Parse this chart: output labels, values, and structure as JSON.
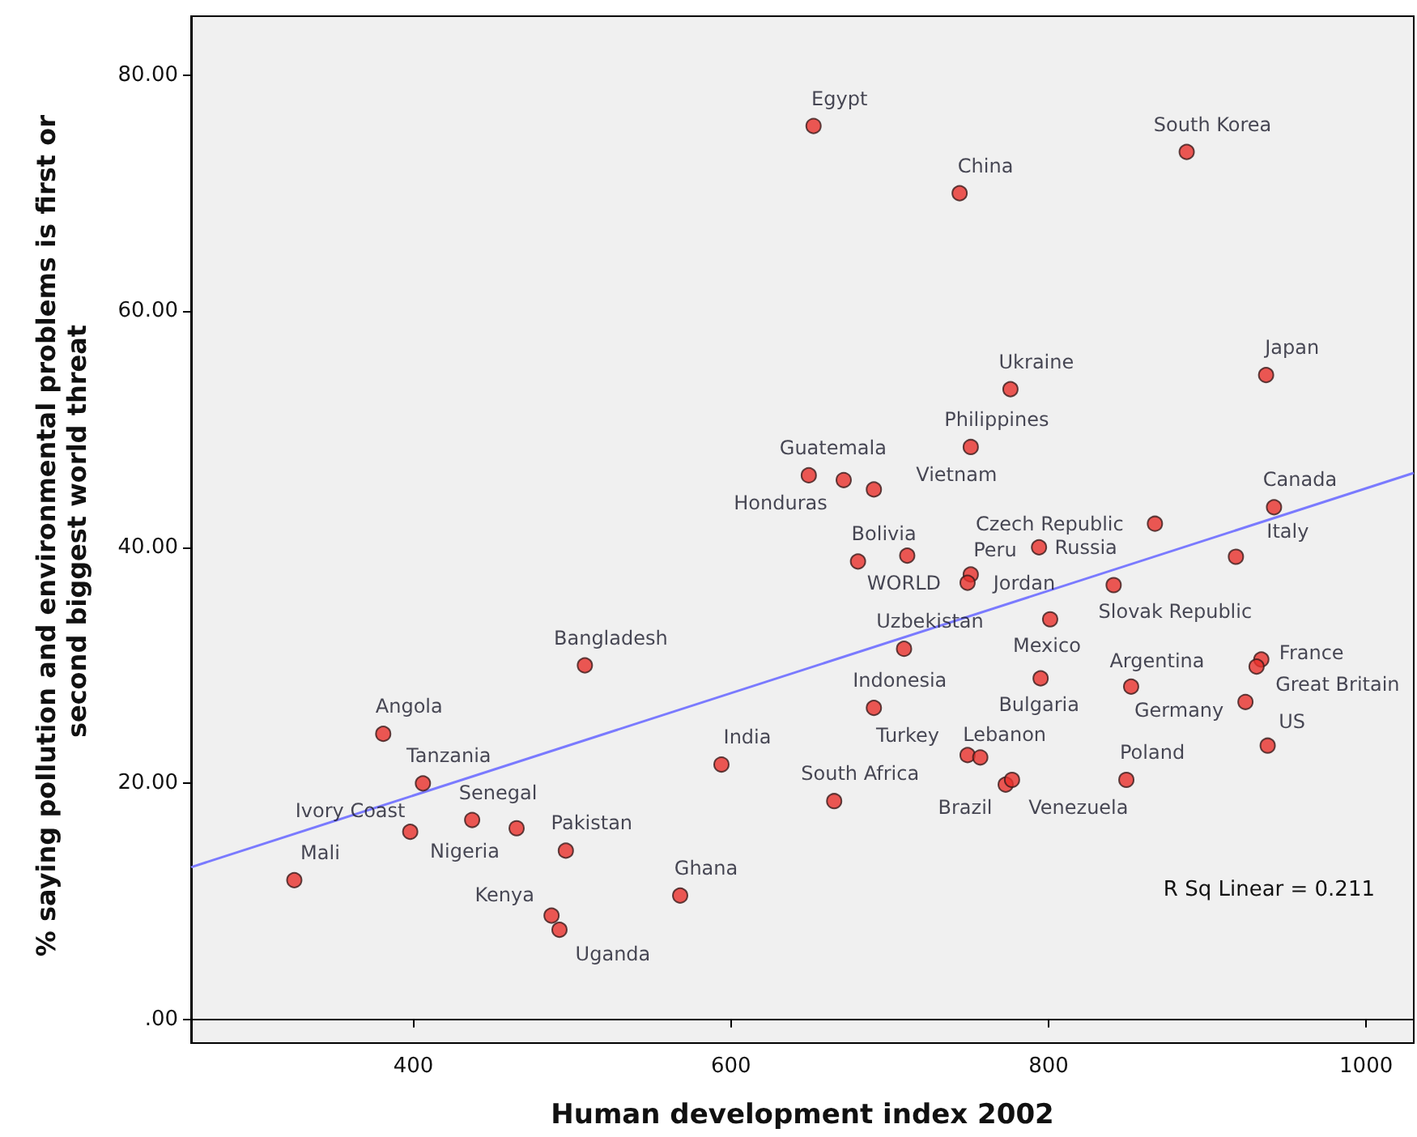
{
  "chart_data": {
    "type": "scatter",
    "xlabel": "Human development index 2002",
    "ylabel": "% saying pollution and environmental problems is first or second biggest world threat",
    "xlim": [
      260,
      1030
    ],
    "ylim": [
      -2,
      85
    ],
    "xticks": [
      400,
      600,
      800,
      1000
    ],
    "yticks": [
      {
        "value": 0,
        "label": ".00"
      },
      {
        "value": 20,
        "label": "20.00"
      },
      {
        "value": 40,
        "label": "40.00"
      },
      {
        "value": 60,
        "label": "60.00"
      },
      {
        "value": 80,
        "label": "80.00"
      }
    ],
    "marker": "circle",
    "series": [
      {
        "color": "#e8302a",
        "x": [
          652,
          887,
          744,
          776,
          937,
          751,
          649,
          671,
          690,
          942,
          867,
          918,
          680,
          711,
          751,
          749,
          794,
          841,
          801,
          508,
          709,
          795,
          852,
          934,
          931,
          924,
          938,
          690,
          594,
          749,
          757,
          665,
          773,
          777,
          849,
          381,
          406,
          398,
          437,
          465,
          496,
          325,
          568,
          487,
          492
        ],
        "values": [
          75.7,
          73.5,
          70.0,
          53.4,
          54.6,
          48.5,
          46.1,
          45.7,
          44.9,
          43.4,
          42.0,
          39.2,
          38.8,
          39.3,
          37.7,
          37.0,
          40.0,
          36.8,
          33.9,
          30.0,
          31.4,
          28.9,
          28.2,
          30.5,
          29.9,
          26.9,
          23.2,
          26.4,
          21.6,
          22.4,
          22.2,
          18.5,
          19.9,
          20.3,
          20.3,
          24.2,
          20.0,
          15.9,
          16.9,
          16.2,
          14.3,
          11.8,
          10.5,
          8.8,
          7.6
        ]
      },
      {
        "type": "line",
        "color": "#7a7aff",
        "marker": "none",
        "x": [
          260,
          1030
        ],
        "values": [
          12.9,
          46.3
        ]
      }
    ],
    "annotations": [
      {
        "text": "Egypt",
        "x": 652,
        "y": 75.7
      },
      {
        "text": "South Korea",
        "x": 887,
        "y": 73.5
      },
      {
        "text": "China",
        "x": 744,
        "y": 70.0
      },
      {
        "text": "Ukraine",
        "x": 776,
        "y": 53.4
      },
      {
        "text": "Japan",
        "x": 937,
        "y": 54.6
      },
      {
        "text": "Philippines",
        "x": 751,
        "y": 48.5
      },
      {
        "text": "Guatemala",
        "x": 649,
        "y": 46.1
      },
      {
        "text": "Honduras",
        "x": 671,
        "y": 45.7
      },
      {
        "text": "Vietnam",
        "x": 690,
        "y": 44.9
      },
      {
        "text": "Canada",
        "x": 942,
        "y": 43.4
      },
      {
        "text": "Czech Republic",
        "x": 867,
        "y": 42.0
      },
      {
        "text": "Italy",
        "x": 918,
        "y": 39.2
      },
      {
        "text": "Bolivia",
        "x": 680,
        "y": 38.8
      },
      {
        "text": "WORLD",
        "x": 711,
        "y": 39.3
      },
      {
        "text": "Peru",
        "x": 751,
        "y": 37.7
      },
      {
        "text": "Jordan",
        "x": 749,
        "y": 37.0
      },
      {
        "text": "Russia",
        "x": 794,
        "y": 40.0
      },
      {
        "text": "Slovak Republic",
        "x": 841,
        "y": 36.8
      },
      {
        "text": "Mexico",
        "x": 801,
        "y": 33.9
      },
      {
        "text": "Bangladesh",
        "x": 508,
        "y": 30.0
      },
      {
        "text": "Uzbekistan",
        "x": 709,
        "y": 31.4
      },
      {
        "text": "Bulgaria",
        "x": 795,
        "y": 28.9
      },
      {
        "text": "Argentina",
        "x": 852,
        "y": 28.2
      },
      {
        "text": "France",
        "x": 934,
        "y": 30.5
      },
      {
        "text": "Great Britain",
        "x": 931,
        "y": 29.9
      },
      {
        "text": "Germany",
        "x": 924,
        "y": 26.9
      },
      {
        "text": "US",
        "x": 938,
        "y": 23.2
      },
      {
        "text": "Indonesia",
        "x": 690,
        "y": 26.4
      },
      {
        "text": "India",
        "x": 594,
        "y": 21.6
      },
      {
        "text": "Turkey",
        "x": 749,
        "y": 22.4
      },
      {
        "text": "Lebanon",
        "x": 757,
        "y": 22.2
      },
      {
        "text": "South Africa",
        "x": 665,
        "y": 18.5
      },
      {
        "text": "Brazil",
        "x": 773,
        "y": 19.9
      },
      {
        "text": "Venezuela",
        "x": 777,
        "y": 20.3
      },
      {
        "text": "Poland",
        "x": 849,
        "y": 20.3
      },
      {
        "text": "Angola",
        "x": 381,
        "y": 24.2
      },
      {
        "text": "Tanzania",
        "x": 406,
        "y": 20.0
      },
      {
        "text": "Ivory Coast",
        "x": 398,
        "y": 15.9
      },
      {
        "text": "Senegal",
        "x": 437,
        "y": 16.9
      },
      {
        "text": "Nigeria",
        "x": 465,
        "y": 16.2
      },
      {
        "text": "Pakistan",
        "x": 496,
        "y": 14.3
      },
      {
        "text": "Mali",
        "x": 325,
        "y": 11.8
      },
      {
        "text": "Ghana",
        "x": 568,
        "y": 10.5
      },
      {
        "text": "Kenya",
        "x": 487,
        "y": 8.8
      },
      {
        "text": "Uganda",
        "x": 492,
        "y": 7.6
      },
      "R Sq Linear = 0.211"
    ]
  }
}
